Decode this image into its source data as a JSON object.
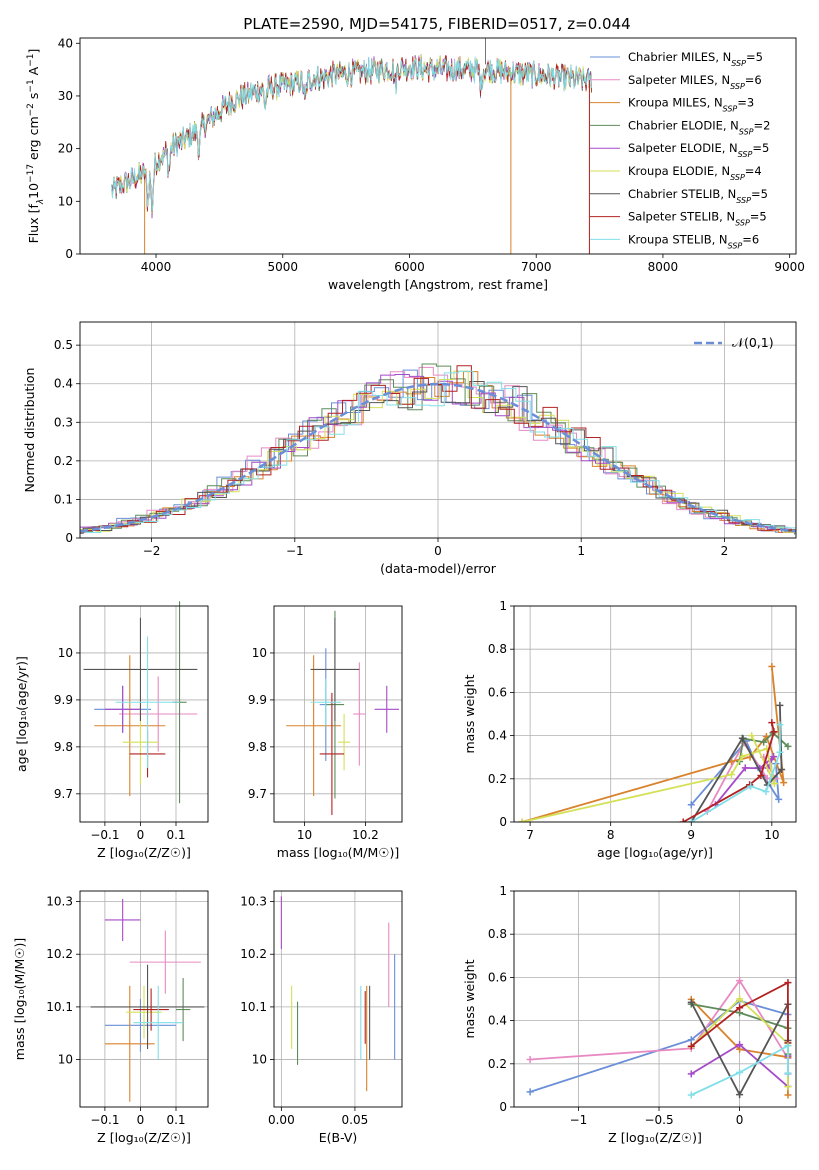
{
  "figure": {
    "title": "PLATE=2590, MJD=54175, FIBERID=0517, z=0.044"
  },
  "chart_data": [
    {
      "id": "spectrum",
      "type": "line",
      "xlabel": "wavelength [Angstrom, rest frame]",
      "ylabel_parts": [
        "Flux [f",
        "λ",
        "10",
        "−17",
        " erg cm",
        "−2",
        " s",
        "−1",
        " A",
        "−1",
        "]"
      ],
      "xlim": [
        3400,
        9050
      ],
      "ylim": [
        0,
        41
      ],
      "xticks": [
        4000,
        5000,
        6000,
        7000,
        8000,
        9000
      ],
      "yticks": [
        0,
        10,
        20,
        30,
        40
      ],
      "legend_position": "top-right",
      "legend": [
        {
          "label": "Chabrier MILES, N",
          "sub": "SSP",
          "suffix": "=5",
          "color": "#6a8fd8"
        },
        {
          "label": "Salpeter MILES, N",
          "sub": "SSP",
          "suffix": "=6",
          "color": "#e78ac3"
        },
        {
          "label": "Kroupa MILES, N",
          "sub": "SSP",
          "suffix": "=3",
          "color": "#d9822b"
        },
        {
          "label": "Chabrier ELODIE, N",
          "sub": "SSP",
          "suffix": "=2",
          "color": "#5e8c5a"
        },
        {
          "label": "Salpeter ELODIE, N",
          "sub": "SSP",
          "suffix": "=5",
          "color": "#a64ac9"
        },
        {
          "label": "Kroupa ELODIE, N",
          "sub": "SSP",
          "suffix": "=4",
          "color": "#d4e157"
        },
        {
          "label": "Chabrier STELIB, N",
          "sub": "SSP",
          "suffix": "=5",
          "color": "#555555"
        },
        {
          "label": "Salpeter STELIB, N",
          "sub": "SSP",
          "suffix": "=5",
          "color": "#b22222"
        },
        {
          "label": "Kroupa STELIB, N",
          "sub": "SSP",
          "suffix": "=6",
          "color": "#80dfe8"
        }
      ],
      "series_shape": {
        "x": [
          3650,
          3800,
          3950,
          4100,
          4250,
          4400,
          4600,
          4800,
          5000,
          5200,
          5400,
          5600,
          5800,
          6000,
          6200,
          6400,
          6600,
          6800,
          7000,
          7200,
          7400
        ],
        "y": [
          12,
          14,
          16,
          20,
          22,
          25,
          29,
          31,
          32,
          33,
          34,
          34.5,
          35,
          35.5,
          35,
          35,
          35,
          34.5,
          34,
          33.5,
          33
        ]
      }
    },
    {
      "id": "residual-histogram",
      "type": "histogram",
      "xlabel": "(data-model)/error",
      "ylabel": "Normed distribution",
      "xlim": [
        -2.5,
        2.5
      ],
      "ylim": [
        0,
        0.56
      ],
      "xticks": [
        -2,
        -1,
        0,
        1,
        2
      ],
      "yticks": [
        0.0,
        0.1,
        0.2,
        0.3,
        0.4,
        0.5
      ],
      "legend_position": "top-right",
      "reference": {
        "label": "𝒩(0,1)",
        "color": "#6a8fd8"
      }
    },
    {
      "id": "age-vs-z",
      "type": "errorbar",
      "xlabel": "Z [log₁₀(Z/Z☉)]",
      "ylabel": "age  [log₁₀(age/yr)]",
      "xlim": [
        -0.17,
        0.19
      ],
      "ylim": [
        9.64,
        10.1
      ],
      "xticks": [
        -0.1,
        0.0,
        0.1
      ],
      "yticks": [
        9.7,
        9.8,
        9.9,
        10.0
      ],
      "points": [
        {
          "x": -0.05,
          "y": 9.88,
          "xerr": 0.08,
          "yerr": 0.05,
          "color": "#6a8fd8"
        },
        {
          "x": 0.05,
          "y": 9.87,
          "xerr": 0.11,
          "yerr": 0.08,
          "color": "#e78ac3"
        },
        {
          "x": -0.03,
          "y": 9.845,
          "xerr": 0.1,
          "yerr": 0.15,
          "color": "#d9822b"
        },
        {
          "x": 0.11,
          "y": 9.895,
          "xerr": 0.02,
          "yerr": 0.215,
          "color": "#5e8c5a"
        },
        {
          "x": -0.05,
          "y": 9.88,
          "xerr": 0.05,
          "yerr": 0.05,
          "color": "#a64ac9"
        },
        {
          "x": 0.0,
          "y": 9.81,
          "xerr": 0.05,
          "yerr": 0.09,
          "color": "#d4e157"
        },
        {
          "x": 0.0,
          "y": 9.965,
          "xerr": 0.16,
          "yerr": 0.11,
          "color": "#555555"
        },
        {
          "x": 0.02,
          "y": 9.785,
          "xerr": 0.05,
          "yerr": 0.05,
          "color": "#b22222"
        },
        {
          "x": 0.02,
          "y": 9.895,
          "xerr": 0.09,
          "yerr": 0.14,
          "color": "#80dfe8"
        }
      ]
    },
    {
      "id": "age-vs-mass",
      "type": "errorbar",
      "xlabel": "mass [log₁₀(M/M☉)]",
      "ylabel": "",
      "xlim": [
        9.9,
        10.32
      ],
      "ylim": [
        9.64,
        10.1
      ],
      "xticks": [
        10.0,
        10.2
      ],
      "yticks": [
        9.7,
        9.8,
        9.9,
        10.0
      ],
      "points": [
        {
          "x": 10.07,
          "y": 9.89,
          "xerr": 0.02,
          "yerr": 0.12,
          "color": "#6a8fd8"
        },
        {
          "x": 10.18,
          "y": 9.87,
          "xerr": 0.02,
          "yerr": 0.11,
          "color": "#e78ac3"
        },
        {
          "x": 10.03,
          "y": 9.845,
          "xerr": 0.09,
          "yerr": 0.15,
          "color": "#d9822b"
        },
        {
          "x": 10.1,
          "y": 9.89,
          "xerr": 0.03,
          "yerr": 0.2,
          "color": "#5e8c5a"
        },
        {
          "x": 10.27,
          "y": 9.88,
          "xerr": 0.04,
          "yerr": 0.05,
          "color": "#a64ac9"
        },
        {
          "x": 10.13,
          "y": 9.81,
          "xerr": 0.02,
          "yerr": 0.06,
          "color": "#d4e157"
        },
        {
          "x": 10.1,
          "y": 9.965,
          "xerr": 0.08,
          "yerr": 0.11,
          "color": "#555555"
        },
        {
          "x": 10.09,
          "y": 9.785,
          "xerr": 0.04,
          "yerr": 0.13,
          "color": "#b22222"
        },
        {
          "x": 10.07,
          "y": 9.895,
          "xerr": 0.05,
          "yerr": 0.05,
          "color": "#80dfe8"
        }
      ]
    },
    {
      "id": "weight-vs-age",
      "type": "line",
      "xlabel": "age  [log₁₀(age/yr)]",
      "ylabel": "mass weight",
      "xlim": [
        6.8,
        10.3
      ],
      "ylim": [
        0,
        1
      ],
      "xticks": [
        7,
        8,
        9,
        10
      ],
      "yticks": [
        0.0,
        0.2,
        0.4,
        0.6,
        0.8,
        1.0
      ]
    },
    {
      "id": "mass-vs-z",
      "type": "errorbar",
      "xlabel": "Z [log₁₀(Z/Z☉)]",
      "ylabel": "mass [log₁₀(M/M☉)]",
      "xlim": [
        -0.17,
        0.19
      ],
      "ylim": [
        9.91,
        10.32
      ],
      "xticks": [
        -0.1,
        0.0,
        0.1
      ],
      "yticks": [
        10.0,
        10.1,
        10.2,
        10.3
      ],
      "points": [
        {
          "x": 0.0,
          "y": 10.065,
          "xerr": 0.1,
          "yerr": 0.05,
          "color": "#6a8fd8"
        },
        {
          "x": 0.07,
          "y": 10.185,
          "xerr": 0.1,
          "yerr": 0.06,
          "color": "#e78ac3"
        },
        {
          "x": -0.03,
          "y": 10.03,
          "xerr": 0.07,
          "yerr": 0.11,
          "color": "#d9822b"
        },
        {
          "x": 0.12,
          "y": 10.095,
          "xerr": 0.02,
          "yerr": 0.06,
          "color": "#5e8c5a"
        },
        {
          "x": -0.05,
          "y": 10.265,
          "xerr": 0.05,
          "yerr": 0.04,
          "color": "#a64ac9"
        },
        {
          "x": 0.01,
          "y": 10.09,
          "xerr": 0.05,
          "yerr": 0.05,
          "color": "#d4e157"
        },
        {
          "x": 0.02,
          "y": 10.1,
          "xerr": 0.16,
          "yerr": 0.08,
          "color": "#555555"
        },
        {
          "x": 0.03,
          "y": 10.095,
          "xerr": 0.05,
          "yerr": 0.04,
          "color": "#b22222"
        },
        {
          "x": 0.05,
          "y": 10.07,
          "xerr": 0.07,
          "yerr": 0.07,
          "color": "#80dfe8"
        }
      ]
    },
    {
      "id": "mass-vs-ebv",
      "type": "errorbar",
      "xlabel": "E(B-V)",
      "ylabel": "",
      "xlim": [
        -0.005,
        0.082
      ],
      "ylim": [
        9.91,
        10.32
      ],
      "xticks": [
        0.0,
        0.05
      ],
      "xtick_labels": [
        "0.00",
        "0.05"
      ],
      "yticks": [
        10.0,
        10.1,
        10.2,
        10.3
      ],
      "points": [
        {
          "x": 0.077,
          "y": 10.1,
          "xerr": 0,
          "yerr": 0.1,
          "color": "#6a8fd8"
        },
        {
          "x": 0.073,
          "y": 10.18,
          "xerr": 0,
          "yerr": 0.08,
          "color": "#e78ac3"
        },
        {
          "x": 0.058,
          "y": 10.04,
          "xerr": 0,
          "yerr": 0.1,
          "color": "#d9822b"
        },
        {
          "x": 0.011,
          "y": 10.05,
          "xerr": 0,
          "yerr": 0.06,
          "color": "#5e8c5a"
        },
        {
          "x": 0.0,
          "y": 10.26,
          "xerr": 0,
          "yerr": 0.05,
          "color": "#a64ac9"
        },
        {
          "x": 0.007,
          "y": 10.08,
          "xerr": 0,
          "yerr": 0.06,
          "color": "#d4e157"
        },
        {
          "x": 0.06,
          "y": 10.07,
          "xerr": 0,
          "yerr": 0.07,
          "color": "#555555"
        },
        {
          "x": 0.057,
          "y": 10.08,
          "xerr": 0,
          "yerr": 0.05,
          "color": "#b22222"
        },
        {
          "x": 0.054,
          "y": 10.07,
          "xerr": 0,
          "yerr": 0.07,
          "color": "#80dfe8"
        }
      ]
    },
    {
      "id": "weight-vs-z",
      "type": "line",
      "xlabel": "Z [log₁₀(Z/Z☉)]",
      "ylabel": "mass weight",
      "xlim": [
        -1.4,
        0.35
      ],
      "ylim": [
        0,
        1
      ],
      "xticks": [
        -1.0,
        -0.5,
        0.0
      ],
      "yticks": [
        0.0,
        0.2,
        0.4,
        0.6,
        0.8,
        1.0
      ]
    }
  ]
}
